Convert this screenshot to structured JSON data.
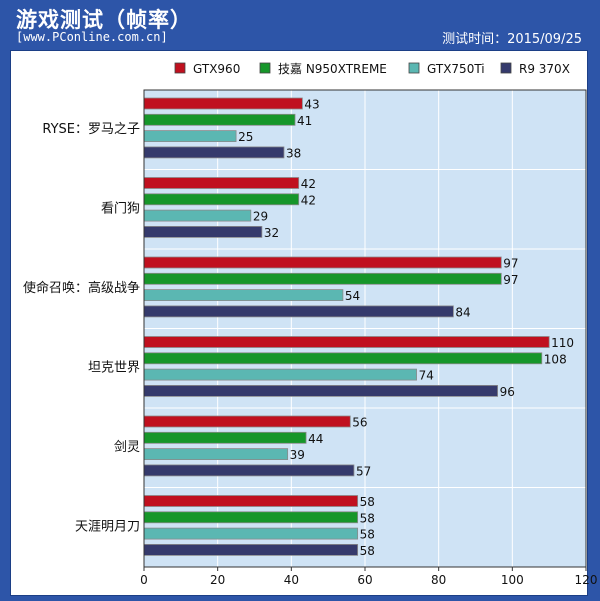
{
  "header": {
    "title": "游戏测试（帧率）",
    "site": "[www.PConline.com.cn]",
    "date": "测试时间：2015/09/25"
  },
  "colors": {
    "background": "#2d55a8",
    "plot_area": "#cfe3f5",
    "series": [
      "#c0101f",
      "#16962a",
      "#5bb7b2",
      "#353a6c"
    ]
  },
  "chart_data": {
    "type": "bar",
    "orientation": "horizontal",
    "categories": [
      "RYSE：罗马之子",
      "看门狗",
      "使命召唤：高级战争",
      "坦克世界",
      "剑灵",
      "天涯明月刀"
    ],
    "series": [
      {
        "name": "GTX960",
        "values": [
          43,
          42,
          97,
          110,
          56,
          58
        ]
      },
      {
        "name": "技嘉 N950XTREME",
        "values": [
          41,
          42,
          97,
          108,
          44,
          58
        ]
      },
      {
        "name": "GTX750Ti",
        "values": [
          25,
          29,
          54,
          74,
          39,
          58
        ]
      },
      {
        "name": "R9 370X",
        "values": [
          38,
          32,
          84,
          96,
          57,
          58
        ]
      }
    ],
    "xlim": [
      0,
      120
    ],
    "xticks": [
      0,
      20,
      40,
      60,
      80,
      100,
      120
    ],
    "legend_position": "top",
    "grid": true
  }
}
